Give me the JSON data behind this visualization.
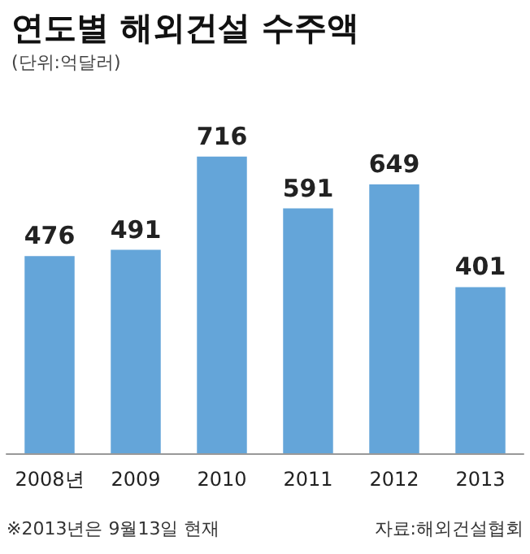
{
  "chart_data": {
    "type": "bar",
    "title": "연도별 해외건설 수주액",
    "subtitle": "(단위:억달러)",
    "categories": [
      "2008년",
      "2009",
      "2010",
      "2011",
      "2012",
      "2013"
    ],
    "values": [
      476,
      491,
      716,
      591,
      649,
      401
    ],
    "color": "#64a5d9",
    "data_labels": true,
    "tick_labels": "x",
    "annotations": [
      "※2013년은 9월13일 현재",
      "자료:해외건설협회"
    ]
  }
}
